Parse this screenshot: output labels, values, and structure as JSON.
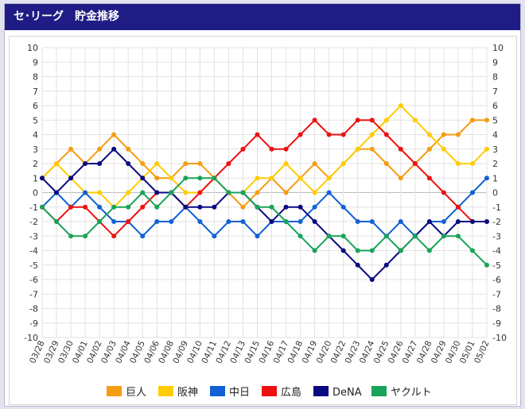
{
  "header": {
    "title": "セ･リーグ　貯金推移"
  },
  "chart_data": {
    "type": "line",
    "title": "",
    "xlabel": "",
    "ylabel": "",
    "ylim": [
      -10,
      10
    ],
    "y_ticks": [
      10,
      9,
      8,
      7,
      6,
      5,
      4,
      3,
      2,
      1,
      0,
      -1,
      -2,
      -3,
      -4,
      -5,
      -6,
      -7,
      -8,
      -9,
      -10
    ],
    "grid": true,
    "legend_position": "bottom",
    "categories": [
      "03/28",
      "03/29",
      "03/30",
      "04/01",
      "04/02",
      "04/03",
      "04/04",
      "04/05",
      "04/06",
      "04/08",
      "04/09",
      "04/10",
      "04/11",
      "04/12",
      "04/13",
      "04/15",
      "04/16",
      "04/17",
      "04/18",
      "04/19",
      "04/20",
      "04/22",
      "04/23",
      "04/24",
      "04/25",
      "04/26",
      "04/27",
      "04/28",
      "04/29",
      "04/30",
      "05/01",
      "05/02"
    ],
    "series": [
      {
        "name": "巨人",
        "color": "#f59c12",
        "values": [
          1,
          2,
          3,
          2,
          3,
          4,
          3,
          2,
          1,
          1,
          2,
          2,
          1,
          0,
          -1,
          0,
          1,
          0,
          1,
          2,
          1,
          2,
          3,
          3,
          2,
          1,
          2,
          3,
          4,
          4,
          5,
          5
        ]
      },
      {
        "name": "阪神",
        "color": "#ffcc00",
        "values": [
          1,
          2,
          1,
          0,
          0,
          -1,
          0,
          1,
          2,
          1,
          0,
          0,
          1,
          0,
          0,
          1,
          1,
          2,
          1,
          0,
          1,
          2,
          3,
          4,
          5,
          6,
          5,
          4,
          3,
          2,
          2,
          3
        ]
      },
      {
        "name": "中日",
        "color": "#1160d6",
        "values": [
          -1,
          0,
          -1,
          0,
          -1,
          -2,
          -2,
          -3,
          -2,
          -2,
          -1,
          -2,
          -3,
          -2,
          -2,
          -3,
          -2,
          -2,
          -2,
          -1,
          0,
          -1,
          -2,
          -2,
          -3,
          -2,
          -3,
          -2,
          -2,
          -1,
          0,
          1
        ]
      },
      {
        "name": "広島",
        "color": "#ee1111",
        "values": [
          -1,
          -2,
          -1,
          -1,
          -2,
          -3,
          -2,
          -1,
          0,
          0,
          -1,
          0,
          1,
          2,
          3,
          4,
          3,
          3,
          4,
          5,
          4,
          4,
          5,
          5,
          4,
          3,
          2,
          1,
          0,
          -1,
          -2,
          -2
        ]
      },
      {
        "name": "DeNA",
        "color": "#0a0a80",
        "values": [
          1,
          0,
          1,
          2,
          2,
          3,
          2,
          1,
          0,
          0,
          -1,
          -1,
          -1,
          0,
          0,
          -1,
          -2,
          -1,
          -1,
          -2,
          -3,
          -4,
          -5,
          -6,
          -5,
          -4,
          -3,
          -2,
          -3,
          -2,
          -2,
          -2
        ]
      },
      {
        "name": "ヤクルト",
        "color": "#1aa35a",
        "values": [
          -1,
          -2,
          -3,
          -3,
          -2,
          -1,
          -1,
          0,
          -1,
          0,
          1,
          1,
          1,
          0,
          0,
          -1,
          -1,
          -2,
          -3,
          -4,
          -3,
          -3,
          -4,
          -4,
          -3,
          -4,
          -3,
          -4,
          -3,
          -3,
          -4,
          -5
        ]
      }
    ]
  }
}
